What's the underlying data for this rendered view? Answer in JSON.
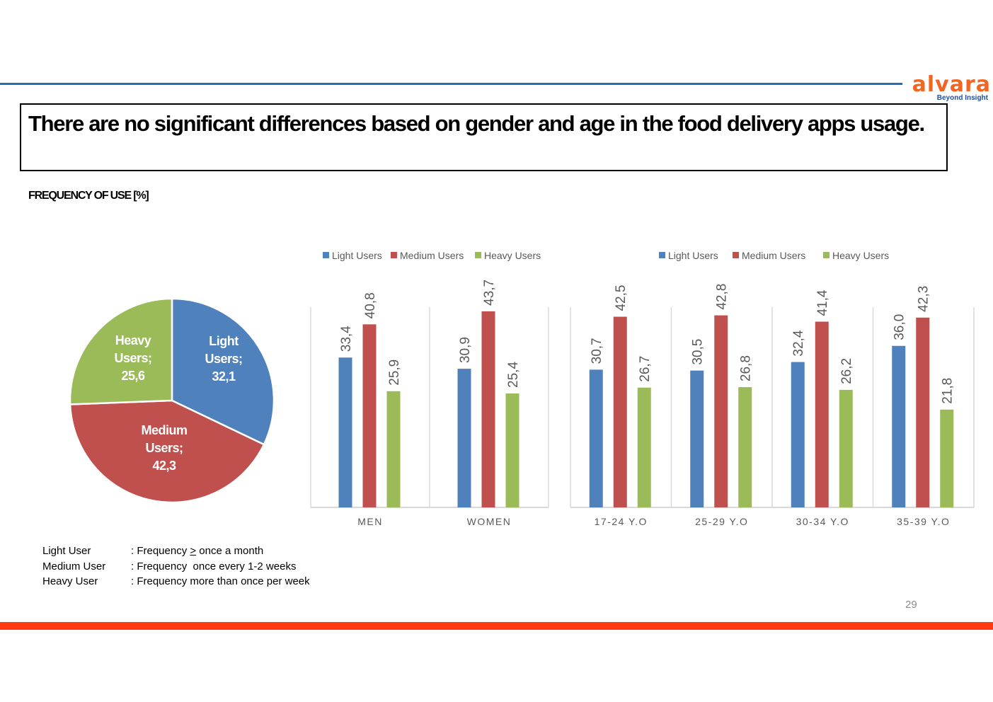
{
  "logo": {
    "word": "alvara",
    "tagline": "Beyond Insight"
  },
  "title": "There are no significant differences based on gender and age in the food delivery apps usage.",
  "subtitle": "FREQUENCY OF USE [%]",
  "colors": {
    "light": "#4f81bd",
    "medium": "#c0504d",
    "heavy": "#9bbb59",
    "top_rule": "#1f6fb2",
    "bottom_rule": "#ff3b0f",
    "logo": "#f26522"
  },
  "chart_data": [
    {
      "type": "pie",
      "title": "",
      "slices": [
        {
          "name": "Light Users",
          "value": 32.1,
          "label_lines": [
            "Light",
            "Users;",
            "32,1"
          ]
        },
        {
          "name": "Medium Users",
          "value": 42.3,
          "label_lines": [
            "Medium",
            "Users;",
            "42,3"
          ]
        },
        {
          "name": "Heavy Users",
          "value": 25.6,
          "label_lines": [
            "Heavy",
            "Users;",
            "25,6"
          ]
        }
      ]
    },
    {
      "type": "bar",
      "categories": [
        "MEN",
        "WOMEN"
      ],
      "legend": [
        "Light Users",
        "Medium Users",
        "Heavy Users"
      ],
      "series": [
        {
          "name": "Light Users",
          "values": [
            33.4,
            30.9
          ],
          "labels": [
            "33,4",
            "30,9"
          ]
        },
        {
          "name": "Medium Users",
          "values": [
            40.8,
            43.7
          ],
          "labels": [
            "40,8",
            "43,7"
          ]
        },
        {
          "name": "Heavy Users",
          "values": [
            25.9,
            25.4
          ],
          "labels": [
            "25,9",
            "25,4"
          ]
        }
      ],
      "ylim": [
        0,
        50
      ],
      "grid": false,
      "legend_position": "top"
    },
    {
      "type": "bar",
      "categories": [
        "17-24 Y.O",
        "25-29 Y.O",
        "30-34 Y.O",
        "35-39 Y.O"
      ],
      "legend": [
        "Light Users",
        "Medium Users",
        "Heavy Users"
      ],
      "series": [
        {
          "name": "Light Users",
          "values": [
            30.7,
            30.5,
            32.4,
            36.0
          ],
          "labels": [
            "30,7",
            "30,5",
            "32,4",
            "36,0"
          ]
        },
        {
          "name": "Medium Users",
          "values": [
            42.5,
            42.8,
            41.4,
            42.3
          ],
          "labels": [
            "42,5",
            "42,8",
            "41,4",
            "42,3"
          ]
        },
        {
          "name": "Heavy Users",
          "values": [
            26.7,
            26.8,
            26.2,
            21.8
          ],
          "labels": [
            "26,7",
            "26,8",
            "26,2",
            "21,8"
          ]
        }
      ],
      "ylim": [
        0,
        50
      ],
      "grid": false,
      "legend_position": "top"
    }
  ],
  "definitions": [
    {
      "term": "Light User",
      "desc_pre": ": Frequency ",
      "symbol": ">",
      "desc_post": " once a month"
    },
    {
      "term": "Medium User",
      "desc_pre": ": Frequency  once every 1-2 weeks",
      "symbol": "",
      "desc_post": ""
    },
    {
      "term": "Heavy User",
      "desc_pre": ": Frequency more than once per week",
      "symbol": "",
      "desc_post": ""
    }
  ],
  "page_number": "29"
}
